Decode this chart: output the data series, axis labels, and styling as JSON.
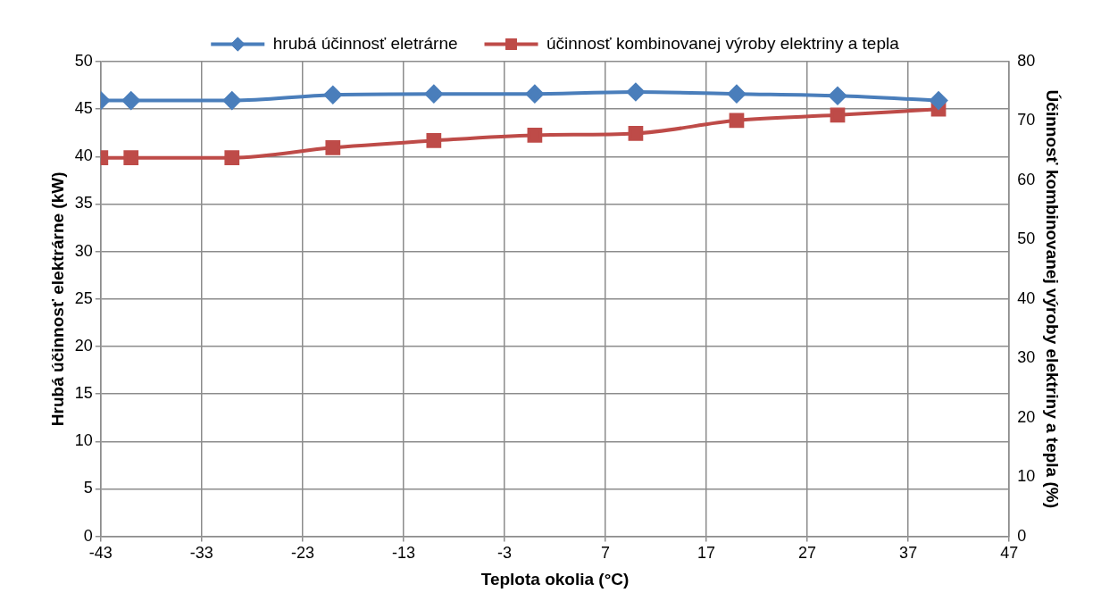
{
  "chart_data": {
    "type": "line",
    "xlabel": "Teplota okolia (°C)",
    "ylabel": "Hrubá účinnosť elektrárne (kW)",
    "y2label": "Účinnosť kombinovanej výroby elektriny a tepla (%)",
    "x": [
      -43,
      -40,
      -30,
      -20,
      -10,
      0,
      10,
      20,
      30,
      40
    ],
    "series": [
      {
        "name": "hrubá účinnosť eletrárne",
        "color": "#4a7ebb",
        "marker": "diamond",
        "values": [
          45.9,
          45.9,
          45.9,
          46.5,
          46.6,
          46.6,
          46.8,
          46.6,
          46.4,
          45.9
        ]
      },
      {
        "name": "účinnosť kombinovanej výroby elektriny a tepla",
        "color": "#be4b48",
        "marker": "square",
        "axis": "y2",
        "values": [
          63.8,
          63.8,
          63.8,
          65.5,
          66.7,
          67.6,
          67.9,
          70.1,
          71.0,
          72.0
        ]
      }
    ],
    "xlim": [
      -43,
      47
    ],
    "xticks": [
      -43,
      -33,
      -23,
      -13,
      -3,
      7,
      17,
      27,
      37,
      47
    ],
    "ylim": [
      0,
      50
    ],
    "yticks": [
      0,
      5,
      10,
      15,
      20,
      25,
      30,
      35,
      40,
      45,
      50
    ],
    "y2lim": [
      0,
      80
    ],
    "y2ticks": [
      0,
      10,
      20,
      30,
      40,
      50,
      60,
      70,
      80
    ],
    "grid": true,
    "legend": "top",
    "line_style": "solid"
  }
}
